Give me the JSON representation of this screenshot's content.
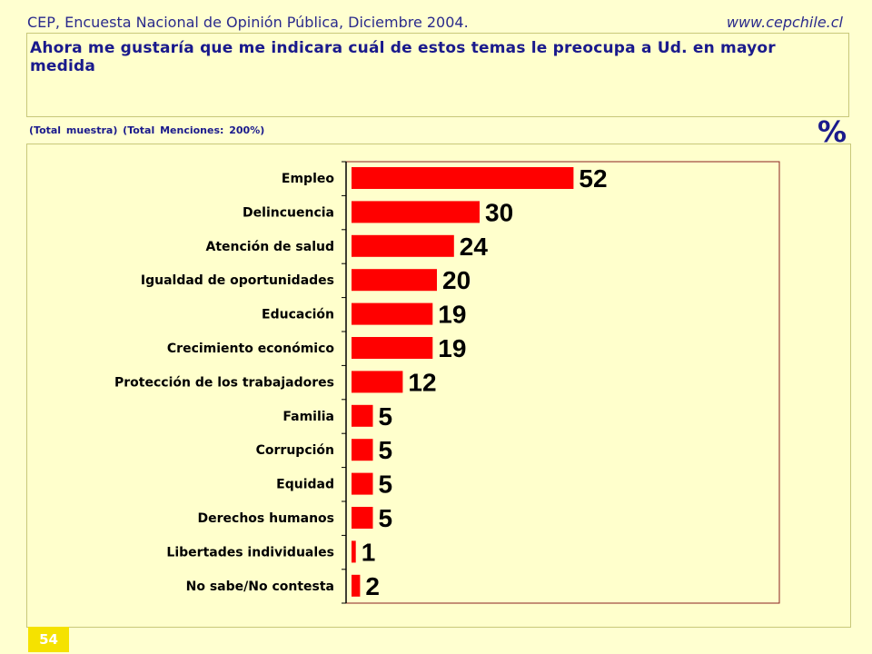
{
  "header": {
    "source": "CEP, Encuesta Nacional de Opinión Pública, Diciembre 2004.",
    "website": "www.cepchile.cl"
  },
  "question": "Ahora me gustaría que me indicara cuál de estos temas le preocupa a Ud. en mayor medida",
  "note": "(Total muestra) (Total Menciones: 200%)",
  "unit": "%",
  "page_number": "54",
  "colors": {
    "bar": "#ff0000",
    "plot_border": "#8b2020",
    "axis": "#000000",
    "background": "#ffffd0"
  },
  "chart_data": {
    "type": "bar",
    "orientation": "horizontal",
    "categories": [
      "Empleo",
      "Delincuencia",
      "Atención de salud",
      "Igualdad de oportunidades",
      "Educación",
      "Crecimiento económico",
      "Protección de los trabajadores",
      "Familia",
      "Corrupción",
      "Equidad",
      "Derechos humanos",
      "Libertades individuales",
      "No sabe/No contesta"
    ],
    "values": [
      52,
      30,
      24,
      20,
      19,
      19,
      12,
      5,
      5,
      5,
      5,
      1,
      2
    ],
    "xlim": [
      0,
      100
    ],
    "grid": false,
    "data_labels": true
  }
}
